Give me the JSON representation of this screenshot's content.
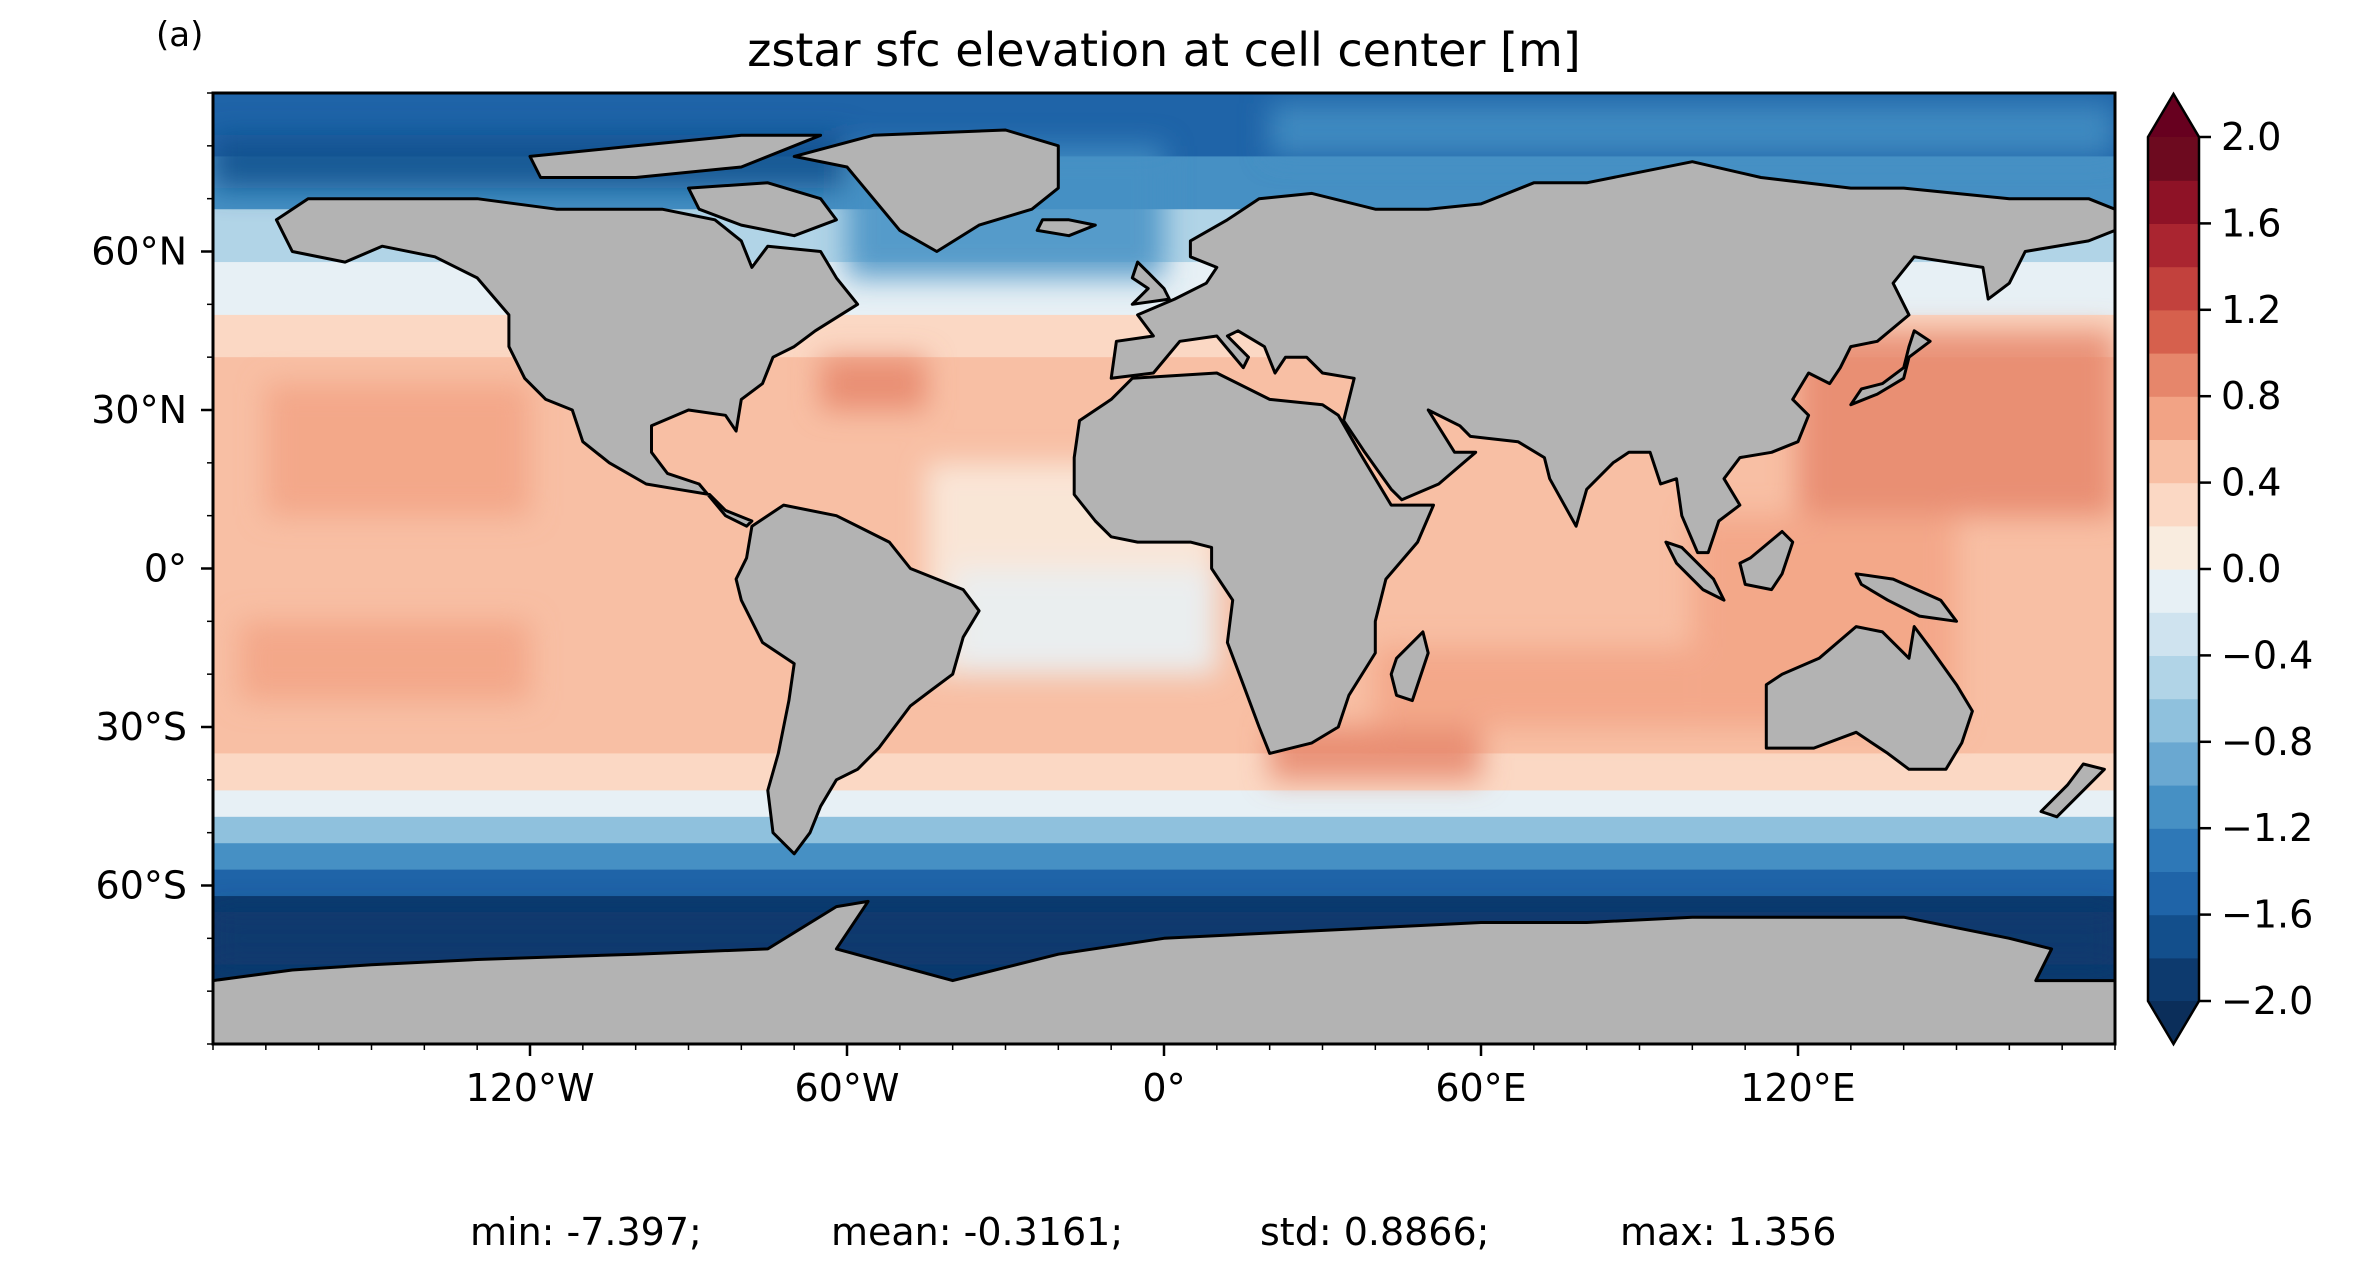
{
  "panel_label": "(a)",
  "title": "zstar sfc elevation at cell center [m]",
  "stats": {
    "min": "min: -7.397;",
    "mean": "mean: -0.3161;",
    "std": "std: 0.8866;",
    "max": "max: 1.356"
  },
  "chart_data": {
    "type": "heatmap",
    "projection": "PlateCarree",
    "title": "zstar sfc elevation at cell center [m]",
    "lon_ticks": [
      "120°W",
      "60°W",
      "0°",
      "60°E",
      "120°E"
    ],
    "lon_tick_values": [
      -120,
      -60,
      0,
      60,
      120
    ],
    "lat_ticks": [
      "60°N",
      "30°N",
      "0°",
      "30°S",
      "60°S"
    ],
    "lat_tick_values": [
      60,
      30,
      0,
      -30,
      -60
    ],
    "lon_range": [
      -180,
      180
    ],
    "lat_range": [
      -90,
      90
    ],
    "colorbar": {
      "ticks": [
        "2.0",
        "1.6",
        "1.2",
        "0.8",
        "0.4",
        "0.0",
        "−0.4",
        "−0.8",
        "−1.2",
        "−1.6",
        "−2.0"
      ],
      "range": [
        -2.0,
        2.0
      ],
      "step": 0.2,
      "extend": "both",
      "colormap": "RdBu_r"
    },
    "land_color": "#b3b3b3",
    "statistics": {
      "min": -7.397,
      "mean": -0.3161,
      "std": 0.8866,
      "max": 1.356
    }
  },
  "colors": {
    "land": "#b3b3b3",
    "background": "#ffffff",
    "ocean_neutral": "#f7f7f7"
  }
}
